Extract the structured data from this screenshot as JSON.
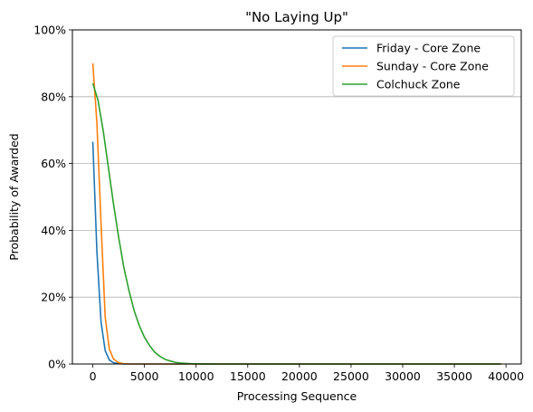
{
  "chart_data": {
    "type": "line",
    "title": "\"No Laying Up\"",
    "xlabel": "Processing Sequence",
    "ylabel": "Probability of Awarded",
    "xlim": [
      -1975,
      41475
    ],
    "ylim": [
      0,
      100
    ],
    "x_ticks": [
      0,
      5000,
      10000,
      15000,
      20000,
      25000,
      30000,
      35000,
      40000
    ],
    "x_tick_labels": [
      "0",
      "5000",
      "10000",
      "15000",
      "20000",
      "25000",
      "30000",
      "35000",
      "40000"
    ],
    "y_ticks": [
      0,
      20,
      40,
      60,
      80,
      100
    ],
    "y_tick_labels": [
      "0%",
      "20%",
      "40%",
      "60%",
      "80%",
      "100%"
    ],
    "grid": "horizontal",
    "legend_position": "top-right",
    "series": [
      {
        "name": "Friday - Core Zone",
        "color": "#1f77b4",
        "x": [
          0,
          400,
          800,
          1200,
          1600,
          2000,
          2500,
          3000,
          4000,
          6000,
          10000,
          20000,
          30000,
          39500
        ],
        "y": [
          66.5,
          33.5,
          12.5,
          4,
          1.2,
          0.4,
          0.1,
          0.03,
          0,
          0,
          0,
          0,
          0,
          0
        ]
      },
      {
        "name": "Sunday - Core Zone",
        "color": "#ff7f0e",
        "x": [
          0,
          400,
          800,
          1200,
          1600,
          2000,
          2500,
          3000,
          3500,
          4000,
          5000,
          7000,
          10000,
          20000,
          30000,
          39500
        ],
        "y": [
          90,
          72,
          42,
          14,
          4.5,
          1.5,
          0.4,
          0.1,
          0.03,
          0,
          0,
          0,
          0,
          0,
          0,
          0
        ]
      },
      {
        "name": "Colchuck Zone",
        "color": "#2ca02c",
        "x": [
          0,
          500,
          1000,
          1500,
          2000,
          2500,
          3000,
          3500,
          4000,
          4500,
          5000,
          5500,
          6000,
          6500,
          7000,
          7500,
          8000,
          8500,
          9000,
          9500,
          10000,
          11000,
          12000,
          14000,
          20000,
          30000,
          39500
        ],
        "y": [
          84,
          79,
          70,
          59,
          48,
          38,
          29,
          22,
          16,
          11.5,
          8,
          5.5,
          3.5,
          2.3,
          1.4,
          0.9,
          0.5,
          0.3,
          0.2,
          0.1,
          0.05,
          0.02,
          0,
          0,
          0,
          0,
          0
        ]
      }
    ]
  }
}
